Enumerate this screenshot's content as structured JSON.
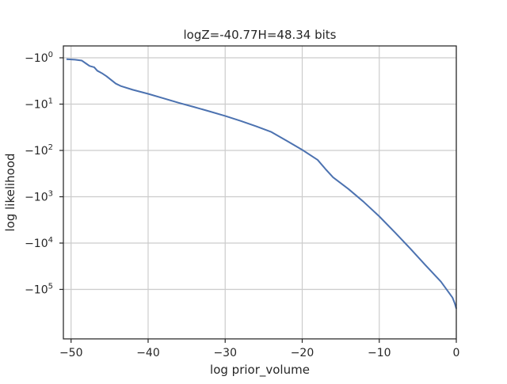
{
  "chart_data": {
    "type": "line",
    "title": "logZ=-40.77H=48.34 bits",
    "xlabel": "log prior_volume",
    "ylabel": "log likelihood",
    "xlim": [
      -51,
      0
    ],
    "yscale": "symlog",
    "grid": true,
    "line_color": "#4c72b0",
    "x_ticks": [
      {
        "value": -50,
        "label": "−50"
      },
      {
        "value": -40,
        "label": "−40"
      },
      {
        "value": -30,
        "label": "−30"
      },
      {
        "value": -20,
        "label": "−20"
      },
      {
        "value": -10,
        "label": "−10"
      },
      {
        "value": 0,
        "label": "0"
      }
    ],
    "y_ticks": [
      {
        "value": -1,
        "base": "−10",
        "exp": "0"
      },
      {
        "value": -10,
        "base": "−10",
        "exp": "1"
      },
      {
        "value": -100,
        "base": "−10",
        "exp": "2"
      },
      {
        "value": -1000,
        "base": "−10",
        "exp": "3"
      },
      {
        "value": -10000,
        "base": "−10",
        "exp": "4"
      },
      {
        "value": -100000,
        "base": "−10",
        "exp": "5"
      }
    ],
    "series": [
      {
        "x": [
          -50.6,
          -49.5,
          -48.6,
          -48.0,
          -47.6,
          -47.0,
          -46.6,
          -46.0,
          -45.4,
          -44.8,
          -44.2,
          -43.5,
          -42.0,
          -40.0,
          -38.0,
          -36.0,
          -34.0,
          -32.0,
          -30.0,
          -28.0,
          -26.0,
          -24.0,
          -22.0,
          -20.0,
          -18.0,
          -17.0,
          -16.0,
          -14.0,
          -12.0,
          -10.0,
          -8.0,
          -6.0,
          -4.0,
          -2.0,
          -1.0,
          -0.5,
          -0.2,
          0.0
        ],
        "y": [
          -1.07,
          -1.1,
          -1.15,
          -1.35,
          -1.5,
          -1.6,
          -1.9,
          -2.15,
          -2.5,
          -3.0,
          -3.6,
          -4.1,
          -4.9,
          -6.0,
          -7.5,
          -9.4,
          -11.6,
          -14.4,
          -18.0,
          -23.0,
          -30.0,
          -40.0,
          -62.0,
          -97.0,
          -160.0,
          -250.0,
          -380.0,
          -680.0,
          -1300.0,
          -2650.0,
          -5800.0,
          -13000.0,
          -30000.0,
          -68000.0,
          -115000.0,
          -150000.0,
          -200000.0,
          -260000.0
        ]
      }
    ]
  }
}
